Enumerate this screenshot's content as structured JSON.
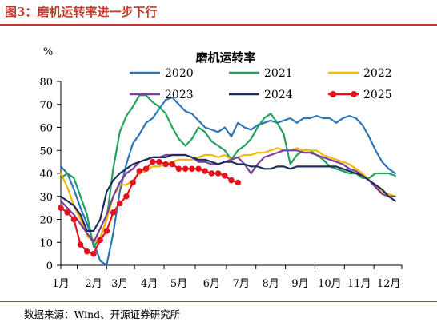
{
  "figure_title": "图3：磨机运转率进一步下行",
  "source_note": "数据来源：Wind、开源证券研究所",
  "chart_data": {
    "type": "line",
    "title": "磨机运转率",
    "ylabel": "%",
    "ylim": [
      0,
      80
    ],
    "yticks": [
      0,
      10,
      20,
      30,
      40,
      50,
      60,
      70,
      80
    ],
    "xlim": [
      1,
      53
    ],
    "month_labels": [
      "1月",
      "2月",
      "3月",
      "4月",
      "5月",
      "6月",
      "7月",
      "8月",
      "9月",
      "10月",
      "11月",
      "12月"
    ],
    "month_positions": [
      1,
      6,
      10,
      14.5,
      19,
      24,
      28.5,
      33,
      37.5,
      42,
      46.5,
      51
    ],
    "legend_position": "top",
    "series": [
      {
        "name": "2020",
        "color": "#2e75b6",
        "markers": false,
        "x": [
          1,
          2,
          3,
          4,
          5,
          6,
          7,
          8,
          9,
          10,
          11,
          12,
          13,
          14,
          15,
          16,
          17,
          18,
          19,
          20,
          21,
          22,
          23,
          24,
          25,
          26,
          27,
          28,
          29,
          30,
          31,
          32,
          33,
          34,
          35,
          36,
          37,
          38,
          39,
          40,
          41,
          42,
          43,
          44,
          45,
          46,
          47,
          48,
          49,
          50,
          51,
          52
        ],
        "y": [
          43,
          40,
          33,
          25,
          18,
          10,
          2,
          0,
          14,
          32,
          44,
          53,
          57,
          62,
          64,
          68,
          72,
          73,
          70,
          67,
          66,
          63,
          60,
          59,
          58,
          60,
          56,
          62,
          60,
          59,
          61,
          62,
          63,
          62,
          63,
          64,
          62,
          64,
          64,
          65,
          64,
          64,
          62,
          64,
          65,
          64,
          61,
          56,
          50,
          45,
          42,
          40
        ]
      },
      {
        "name": "2021",
        "color": "#21a35b",
        "markers": false,
        "x": [
          1,
          2,
          3,
          4,
          5,
          6,
          7,
          8,
          9,
          10,
          11,
          12,
          13,
          14,
          15,
          16,
          17,
          18,
          19,
          20,
          21,
          22,
          23,
          24,
          25,
          26,
          27,
          28,
          29,
          30,
          31,
          32,
          33,
          34,
          35,
          36,
          37,
          38,
          39,
          40,
          41,
          42,
          43,
          44,
          45,
          46,
          47,
          48,
          49,
          50,
          51,
          52
        ],
        "y": [
          38,
          40,
          38,
          30,
          22,
          8,
          12,
          20,
          42,
          58,
          65,
          69,
          74,
          74,
          71,
          69,
          66,
          60,
          55,
          52,
          55,
          60,
          58,
          54,
          52,
          50,
          46,
          50,
          52,
          55,
          60,
          64,
          66,
          62,
          57,
          44,
          48,
          50,
          50,
          48,
          46,
          43,
          42,
          41,
          40,
          40,
          38,
          38,
          40,
          40,
          40,
          39
        ]
      },
      {
        "name": "2022",
        "color": "#f5b700",
        "markers": false,
        "x": [
          1,
          2,
          3,
          4,
          5,
          6,
          7,
          8,
          9,
          10,
          11,
          12,
          13,
          14,
          15,
          16,
          17,
          18,
          19,
          20,
          21,
          22,
          23,
          24,
          25,
          26,
          27,
          28,
          29,
          30,
          31,
          32,
          33,
          34,
          35,
          36,
          37,
          38,
          39,
          40,
          41,
          42,
          43,
          44,
          45,
          46,
          47,
          48,
          49,
          50,
          51,
          52
        ],
        "y": [
          40,
          34,
          26,
          20,
          13,
          10,
          12,
          20,
          30,
          35,
          35,
          37,
          40,
          41,
          43,
          43,
          44,
          45,
          46,
          46,
          46,
          47,
          48,
          48,
          47,
          48,
          46,
          47,
          48,
          48,
          49,
          49,
          50,
          51,
          50,
          50,
          51,
          50,
          50,
          50,
          48,
          47,
          46,
          45,
          44,
          42,
          40,
          37,
          34,
          32,
          31,
          30
        ]
      },
      {
        "name": "2023",
        "color": "#7a3fa0",
        "markers": false,
        "x": [
          1,
          2,
          3,
          4,
          5,
          6,
          7,
          8,
          9,
          10,
          11,
          12,
          13,
          14,
          15,
          16,
          17,
          18,
          19,
          20,
          21,
          22,
          23,
          24,
          25,
          26,
          27,
          28,
          29,
          30,
          31,
          32,
          33,
          34,
          35,
          36,
          37,
          38,
          39,
          40,
          41,
          42,
          43,
          44,
          45,
          46,
          47,
          48,
          49,
          50,
          51,
          52
        ],
        "y": [
          28,
          25,
          22,
          18,
          14,
          10,
          16,
          22,
          30,
          36,
          40,
          42,
          45,
          46,
          47,
          47,
          48,
          48,
          48,
          48,
          47,
          45,
          45,
          44,
          44,
          45,
          46,
          47,
          44,
          40,
          44,
          47,
          48,
          49,
          50,
          50,
          50,
          49,
          49,
          48,
          47,
          46,
          45,
          44,
          42,
          41,
          39,
          37,
          34,
          31,
          30,
          30
        ]
      },
      {
        "name": "2024",
        "color": "#1f2d5a",
        "markers": false,
        "x": [
          1,
          2,
          3,
          4,
          5,
          6,
          7,
          8,
          9,
          10,
          11,
          12,
          13,
          14,
          15,
          16,
          17,
          18,
          19,
          20,
          21,
          22,
          23,
          24,
          25,
          26,
          27,
          28,
          29,
          30,
          31,
          32,
          33,
          34,
          35,
          36,
          37,
          38,
          39,
          40,
          41,
          42,
          43,
          44,
          45,
          46,
          47,
          48,
          49,
          50,
          51,
          52
        ],
        "y": [
          30,
          28,
          26,
          22,
          15,
          15,
          20,
          32,
          37,
          40,
          42,
          44,
          45,
          46,
          47,
          47,
          47,
          48,
          48,
          48,
          47,
          46,
          46,
          45,
          44,
          45,
          45,
          44,
          44,
          43,
          43,
          42,
          42,
          43,
          43,
          42,
          43,
          43,
          43,
          43,
          43,
          43,
          43,
          42,
          41,
          40,
          39,
          37,
          35,
          33,
          30,
          28
        ]
      },
      {
        "name": "2025",
        "color": "#e8101a",
        "markers": true,
        "x": [
          1,
          2,
          3,
          4,
          5,
          6,
          7,
          8,
          9,
          10,
          11,
          12,
          13,
          14,
          15,
          16,
          17,
          18,
          19,
          20,
          21,
          22,
          23,
          24,
          25,
          26,
          27,
          28
        ],
        "y": [
          25,
          23,
          20,
          9,
          6,
          5,
          11,
          15,
          23,
          27,
          30,
          36,
          41,
          42,
          45,
          45,
          44,
          44,
          42,
          42,
          42,
          42,
          41,
          40,
          40,
          39,
          37,
          36
        ]
      }
    ]
  }
}
